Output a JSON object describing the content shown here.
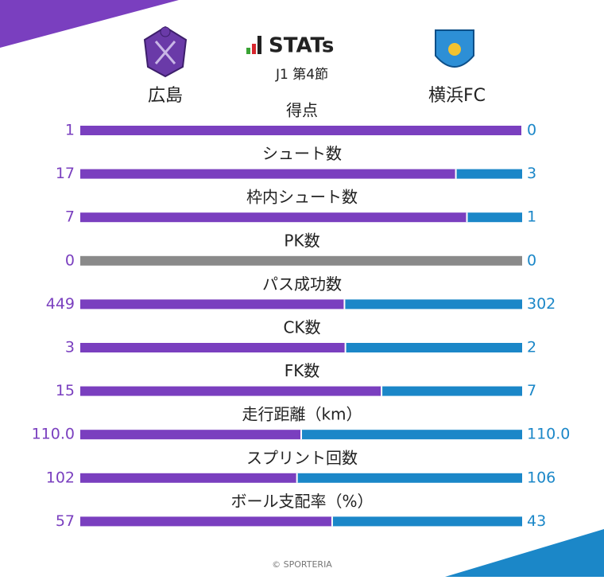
{
  "header": {
    "logo_text": "STATs",
    "subtitle": "J1 第4節"
  },
  "chart_data": {
    "type": "stacked-bar-100",
    "categories": [
      "得点",
      "シュート数",
      "枠内シュート数",
      "PK数",
      "パス成功数",
      "CK数",
      "FK数",
      "走行距離（km）",
      "スプリント回数",
      "ボール支配率（%）"
    ],
    "series": [
      {
        "name": "広島",
        "color": "#7a3fbf",
        "values": [
          1,
          17,
          7,
          0,
          449,
          3,
          15,
          110.0,
          102,
          57
        ],
        "value_labels": [
          "1",
          "17",
          "7",
          "0",
          "449",
          "3",
          "15",
          "110.0",
          "102",
          "57"
        ]
      },
      {
        "name": "横浜FC",
        "color": "#1b87c8",
        "values": [
          0,
          3,
          1,
          0,
          302,
          2,
          7,
          110.0,
          106,
          43
        ],
        "value_labels": [
          "0",
          "3",
          "1",
          "0",
          "302",
          "2",
          "7",
          "110.0",
          "106",
          "43"
        ]
      }
    ],
    "empty_color": "#8a8a8a"
  },
  "footer": "© SPORTERIA"
}
